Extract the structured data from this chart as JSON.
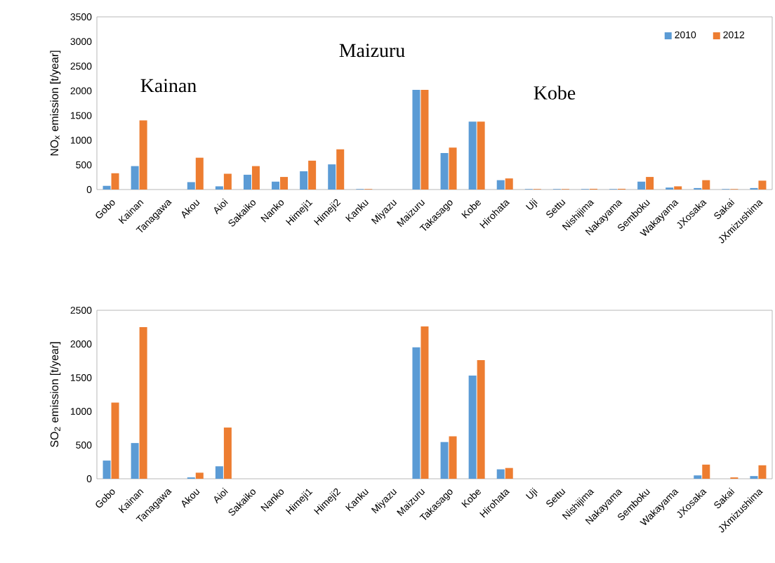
{
  "chart_data": [
    {
      "type": "bar",
      "ylabel": "NO$_{x}$ emission [t/year]",
      "categories": [
        "Gobo",
        "Kainan",
        "Tanagawa",
        "Akou",
        "Aioi",
        "Sakaiko",
        "Nanko",
        "Himeji1",
        "Himeji2",
        "Kanku",
        "Miyazu",
        "Maizuru",
        "Takasago",
        "Kobe",
        "Hirohata",
        "Uji",
        "Settu",
        "Nishijima",
        "Nakayama",
        "Semboku",
        "Wakayama",
        "JXosaka",
        "Sakai",
        "JXmizushima"
      ],
      "series": [
        {
          "name": "2010",
          "color": "#5b9bd5",
          "values": [
            75,
            475,
            0,
            150,
            65,
            300,
            160,
            370,
            510,
            10,
            0,
            2020,
            740,
            1375,
            190,
            10,
            10,
            10,
            10,
            160,
            40,
            30,
            10,
            30
          ]
        },
        {
          "name": "2012",
          "color": "#ed7d31",
          "values": [
            330,
            1400,
            0,
            645,
            320,
            475,
            255,
            585,
            815,
            10,
            0,
            2020,
            850,
            1375,
            225,
            10,
            10,
            15,
            15,
            255,
            65,
            190,
            10,
            180
          ]
        }
      ],
      "ylim": [
        0,
        3500
      ],
      "yticks": [
        0,
        500,
        1000,
        1500,
        2000,
        2500,
        3000,
        3500
      ],
      "legend": "top right",
      "grid": false,
      "annotations": [
        "Kainan",
        "Maizuru",
        "Kobe"
      ]
    },
    {
      "type": "bar",
      "ylabel": "SO$_{2}$ emission [t/year]",
      "categories": [
        "Gobo",
        "Kainan",
        "Tanagawa",
        "Akou",
        "Aioi",
        "Sakaiko",
        "Nanko",
        "Himeji1",
        "Himeji2",
        "Kanku",
        "Miyazu",
        "Maizuru",
        "Takasago",
        "Kobe",
        "Hirohata",
        "Uji",
        "Settu",
        "Nishijima",
        "Nakayama",
        "Semboku",
        "Wakayama",
        "JXosaka",
        "Sakai",
        "JXmizushima"
      ],
      "series": [
        {
          "color": "#5b9bd5",
          "values": [
            270,
            530,
            0,
            20,
            185,
            0,
            0,
            0,
            0,
            0,
            0,
            1950,
            545,
            1530,
            140,
            0,
            0,
            0,
            0,
            0,
            0,
            50,
            0,
            40
          ]
        },
        {
          "color": "#ed7d31",
          "values": [
            1130,
            2250,
            0,
            90,
            760,
            0,
            0,
            0,
            0,
            0,
            0,
            2260,
            630,
            1760,
            160,
            0,
            0,
            0,
            0,
            0,
            0,
            210,
            20,
            200
          ]
        }
      ],
      "ylim": [
        0,
        2500
      ],
      "yticks": [
        0,
        500,
        1000,
        1500,
        2000,
        2500
      ],
      "legend": false,
      "grid": false
    }
  ]
}
